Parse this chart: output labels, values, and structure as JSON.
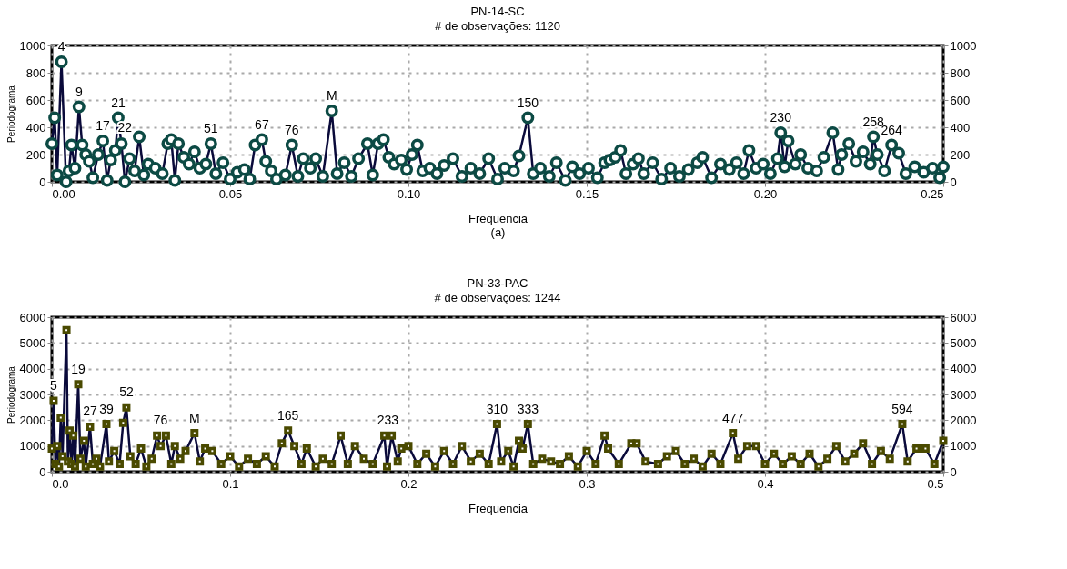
{
  "chart_data": [
    {
      "type": "line",
      "title": "PN-14-SC",
      "subtitle": "# de observações: 1120",
      "xlabel": "Frequencia",
      "ylabel": "Periodograma",
      "marker": "circle",
      "grid": true,
      "line_style": "solid",
      "xlim": [
        0,
        0.25
      ],
      "xticks": [
        {
          "value": 0,
          "label": "0.00"
        },
        0.05,
        {
          "value": 0.1,
          "label": "0.10"
        },
        0.15,
        {
          "value": 0.2,
          "label": "0.20"
        },
        0.25
      ],
      "ylim": [
        0,
        1000
      ],
      "yticks": [
        0,
        200,
        400,
        600,
        800,
        1000
      ],
      "y2lim": [
        0,
        1000
      ],
      "y2ticks": [
        0,
        200,
        400,
        600,
        800,
        1000
      ],
      "series": [
        {
          "color": "#0c4a44",
          "x": [
            0.0,
            0.0008,
            0.0015,
            0.0027,
            0.004,
            0.0048,
            0.0055,
            0.0065,
            0.0076,
            0.0085,
            0.0095,
            0.0105,
            0.0115,
            0.013,
            0.0143,
            0.0155,
            0.0165,
            0.0178,
            0.0186,
            0.0195,
            0.0205,
            0.0218,
            0.0232,
            0.0245,
            0.0258,
            0.027,
            0.029,
            0.031,
            0.0325,
            0.0335,
            0.0345,
            0.0355,
            0.037,
            0.0385,
            0.04,
            0.0415,
            0.0432,
            0.0446,
            0.046,
            0.048,
            0.05,
            0.052,
            0.054,
            0.0555,
            0.057,
            0.0589,
            0.06,
            0.0615,
            0.063,
            0.0655,
            0.0673,
            0.069,
            0.0705,
            0.0725,
            0.074,
            0.076,
            0.0785,
            0.08,
            0.082,
            0.084,
            0.086,
            0.0885,
            0.09,
            0.0915,
            0.093,
            0.0945,
            0.096,
            0.098,
            0.0995,
            0.101,
            0.1025,
            0.104,
            0.106,
            0.108,
            0.11,
            0.1125,
            0.115,
            0.1175,
            0.12,
            0.1225,
            0.125,
            0.127,
            0.1295,
            0.131,
            0.1335,
            0.135,
            0.137,
            0.1395,
            0.1415,
            0.144,
            0.146,
            0.148,
            0.1505,
            0.153,
            0.155,
            0.1565,
            0.158,
            0.1595,
            0.161,
            0.163,
            0.1645,
            0.166,
            0.1685,
            0.171,
            0.1735,
            0.176,
            0.1785,
            0.181,
            0.1825,
            0.185,
            0.1875,
            0.19,
            0.192,
            0.194,
            0.1955,
            0.1975,
            0.1995,
            0.2015,
            0.2035,
            0.2044,
            0.2055,
            0.2065,
            0.2085,
            0.21,
            0.212,
            0.2145,
            0.2165,
            0.219,
            0.2205,
            0.2215,
            0.2235,
            0.2255,
            0.2275,
            0.2295,
            0.2304,
            0.2315,
            0.2335,
            0.2355,
            0.2375,
            0.2395,
            0.242,
            0.2445,
            0.247,
            0.249,
            0.25
          ],
          "values": [
            280,
            470,
            50,
            880,
            0,
            80,
            270,
            100,
            550,
            270,
            200,
            150,
            30,
            200,
            300,
            10,
            160,
            230,
            470,
            280,
            0,
            170,
            80,
            330,
            50,
            130,
            100,
            60,
            280,
            310,
            10,
            280,
            180,
            130,
            220,
            100,
            130,
            280,
            60,
            140,
            20,
            70,
            90,
            20,
            270,
            310,
            150,
            80,
            20,
            50,
            270,
            40,
            170,
            100,
            170,
            40,
            520,
            60,
            140,
            40,
            170,
            280,
            50,
            280,
            310,
            180,
            130,
            160,
            90,
            200,
            270,
            80,
            100,
            60,
            120,
            170,
            40,
            100,
            60,
            170,
            20,
            100,
            80,
            190,
            470,
            60,
            100,
            40,
            140,
            10,
            110,
            60,
            100,
            30,
            140,
            160,
            180,
            230,
            60,
            130,
            170,
            60,
            140,
            20,
            100,
            40,
            90,
            140,
            180,
            30,
            130,
            90,
            140,
            60,
            230,
            100,
            130,
            60,
            170,
            360,
            110,
            300,
            130,
            200,
            100,
            80,
            180,
            360,
            90,
            200,
            280,
            150,
            220,
            130,
            330,
            200,
            80,
            270,
            210,
            60,
            110,
            70,
            100,
            30,
            110
          ]
        }
      ],
      "annotations": [
        {
          "text": "4",
          "x": 0.0027,
          "y": 880
        },
        {
          "text": "9",
          "x": 0.0076,
          "y": 550
        },
        {
          "text": "17",
          "x": 0.0143,
          "y": 300
        },
        {
          "text": "21",
          "x": 0.0186,
          "y": 470
        },
        {
          "text": "22",
          "x": 0.0205,
          "y": 290
        },
        {
          "text": "51",
          "x": 0.0446,
          "y": 280
        },
        {
          "text": "67",
          "x": 0.0589,
          "y": 310
        },
        {
          "text": "76",
          "x": 0.0673,
          "y": 270
        },
        {
          "text": "M",
          "x": 0.0785,
          "y": 520
        },
        {
          "text": "150",
          "x": 0.1335,
          "y": 470
        },
        {
          "text": "230",
          "x": 0.2044,
          "y": 360
        },
        {
          "text": "258",
          "x": 0.2304,
          "y": 330
        },
        {
          "text": "264",
          "x": 0.2355,
          "y": 270
        },
        "(a)"
      ]
    },
    {
      "type": "line",
      "title": "PN-33-PAC",
      "subtitle": "# de observações: 1244",
      "xlabel": "Frequencia",
      "ylabel": "Periodograma",
      "marker": "square",
      "grid": true,
      "line_style": "solid",
      "xlim": [
        0,
        0.5
      ],
      "xticks": [
        {
          "value": 0,
          "label": "0.0"
        },
        0.1,
        0.2,
        0.3,
        0.4,
        0.5
      ],
      "ylim": [
        0,
        6000
      ],
      "yticks": [
        0,
        1000,
        2000,
        3000,
        4000,
        5000,
        6000
      ],
      "y2lim": [
        0,
        6000
      ],
      "y2ticks": [
        0,
        1000,
        2000,
        3000,
        4000,
        5000,
        6000
      ],
      "series": [
        {
          "color": "#4a4a00",
          "x": [
            0.0,
            0.001,
            0.002,
            0.003,
            0.004,
            0.005,
            0.006,
            0.0082,
            0.009,
            0.01,
            0.011,
            0.012,
            0.013,
            0.0148,
            0.016,
            0.018,
            0.019,
            0.0214,
            0.023,
            0.025,
            0.027,
            0.0306,
            0.032,
            0.035,
            0.038,
            0.04,
            0.0418,
            0.044,
            0.047,
            0.05,
            0.053,
            0.056,
            0.059,
            0.061,
            0.064,
            0.067,
            0.069,
            0.072,
            0.075,
            0.08,
            0.083,
            0.086,
            0.09,
            0.095,
            0.1,
            0.105,
            0.11,
            0.115,
            0.12,
            0.125,
            0.129,
            0.1325,
            0.136,
            0.14,
            0.143,
            0.148,
            0.152,
            0.157,
            0.162,
            0.166,
            0.17,
            0.175,
            0.18,
            0.1865,
            0.188,
            0.1906,
            0.194,
            0.196,
            0.2,
            0.205,
            0.21,
            0.215,
            0.22,
            0.225,
            0.23,
            0.235,
            0.24,
            0.245,
            0.2497,
            0.252,
            0.256,
            0.259,
            0.262,
            0.264,
            0.267,
            0.27,
            0.275,
            0.28,
            0.285,
            0.29,
            0.295,
            0.3,
            0.305,
            0.31,
            0.312,
            0.318,
            0.325,
            0.328,
            0.333,
            0.34,
            0.345,
            0.35,
            0.355,
            0.36,
            0.365,
            0.37,
            0.375,
            0.382,
            0.385,
            0.39,
            0.395,
            0.4,
            0.405,
            0.41,
            0.415,
            0.42,
            0.425,
            0.43,
            0.435,
            0.44,
            0.445,
            0.45,
            0.455,
            0.46,
            0.465,
            0.47,
            0.477,
            0.48,
            0.485,
            0.49,
            0.495,
            0.5
          ],
          "values": [
            900,
            2750,
            300,
            1000,
            200,
            2100,
            600,
            5500,
            400,
            1600,
            300,
            1400,
            200,
            3400,
            500,
            1200,
            200,
            1750,
            300,
            500,
            200,
            1850,
            400,
            800,
            300,
            1900,
            2500,
            600,
            300,
            900,
            200,
            500,
            1400,
            1000,
            1400,
            300,
            1000,
            500,
            800,
            1500,
            400,
            900,
            800,
            300,
            600,
            200,
            500,
            300,
            600,
            200,
            1100,
            1600,
            1000,
            300,
            900,
            200,
            500,
            300,
            1400,
            300,
            1000,
            500,
            300,
            1400,
            200,
            1400,
            400,
            900,
            1000,
            300,
            700,
            200,
            800,
            300,
            1000,
            400,
            700,
            300,
            1850,
            400,
            800,
            200,
            1200,
            900,
            1850,
            300,
            500,
            400,
            300,
            600,
            200,
            800,
            300,
            1400,
            900,
            300,
            1100,
            1100,
            400,
            300,
            600,
            800,
            300,
            500,
            200,
            700,
            300,
            1500,
            500,
            1000,
            1000,
            300,
            700,
            300,
            600,
            300,
            700,
            200,
            500,
            1000,
            400,
            700,
            1100,
            300,
            800,
            500,
            1850,
            400,
            900,
            900,
            300,
            1200
          ]
        }
      ],
      "annotations": [
        {
          "text": "5",
          "x": 0.001,
          "y": 2750
        },
        {
          "text": "19",
          "x": 0.0148,
          "y": 3400
        },
        {
          "text": "27",
          "x": 0.0214,
          "y": 1750
        },
        {
          "text": "39",
          "x": 0.0306,
          "y": 1850
        },
        {
          "text": "52",
          "x": 0.0418,
          "y": 2500
        },
        {
          "text": "76",
          "x": 0.061,
          "y": 1400
        },
        {
          "text": "M",
          "x": 0.08,
          "y": 1500
        },
        {
          "text": "165",
          "x": 0.1325,
          "y": 1600
        },
        {
          "text": "233",
          "x": 0.1885,
          "y": 1400
        },
        {
          "text": "310",
          "x": 0.2497,
          "y": 1850
        },
        {
          "text": "333",
          "x": 0.267,
          "y": 1850
        },
        {
          "text": "477",
          "x": 0.382,
          "y": 1500
        },
        {
          "text": "594",
          "x": 0.477,
          "y": 1850
        }
      ]
    }
  ]
}
